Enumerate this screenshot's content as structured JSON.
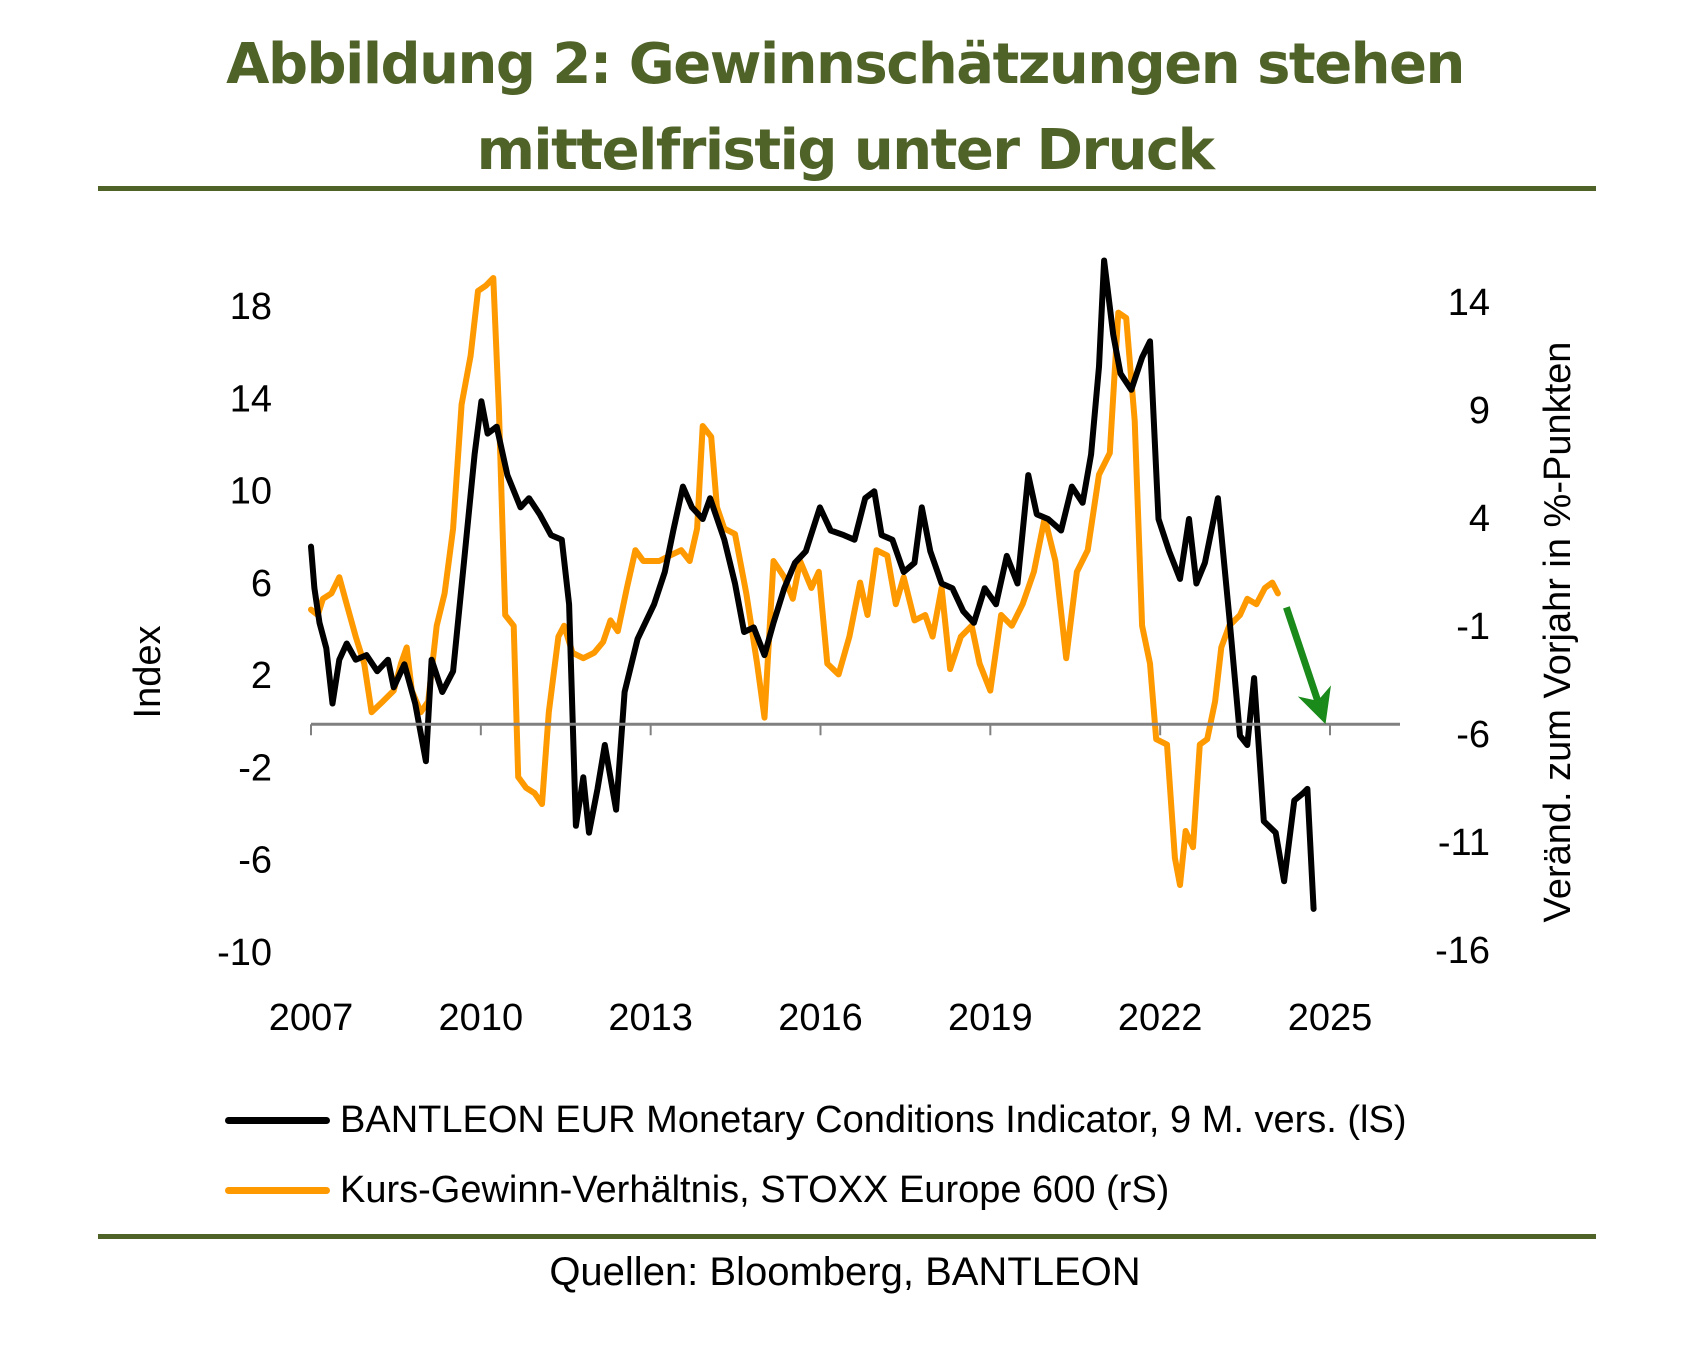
{
  "title": {
    "line1": "Abbildung 2: Gewinnschätzungen stehen",
    "line2": "mittelfristig unter Druck"
  },
  "source": "Quellen: Bloomberg, BANTLEON",
  "colors": {
    "title": "#4f6228",
    "series_black": "#000000",
    "series_orange": "#ff9900",
    "arrow": "#1a8a1a",
    "axis": "#808080"
  },
  "chart_data": {
    "type": "line",
    "title": "Abbildung 2: Gewinnschätzungen stehen mittelfristig unter Druck",
    "xlabel": "",
    "ylabel": "Index",
    "y2label": "Veränd. zum Vorjahr in %-Punkten",
    "xlim": [
      2007,
      2025
    ],
    "ylim": [
      -10,
      18
    ],
    "y2lim": [
      -16,
      14
    ],
    "x_ticks": [
      2007,
      2010,
      2013,
      2016,
      2019,
      2022,
      2025
    ],
    "y_ticks": [
      18,
      14,
      10,
      6,
      2,
      -2,
      -6,
      -10
    ],
    "y2_ticks": [
      14,
      9,
      4,
      -1,
      -6,
      -11,
      -16
    ],
    "grid": false,
    "legend_position": "bottom",
    "annotations": [
      {
        "type": "arrow",
        "color": "green",
        "axis": "right",
        "from": [
          2024.23,
          0.0
        ],
        "to": [
          2024.85,
          -4.85
        ]
      }
    ],
    "series": [
      {
        "name": "BANTLEON EUR Monetary Conditions Indicator, 9 M. vers. (lS)",
        "axis": "left",
        "color": "#000000",
        "x": [
          2007.0,
          2007.06,
          2007.15,
          2007.27,
          2007.38,
          2007.5,
          2007.63,
          2007.79,
          2007.98,
          2008.17,
          2008.36,
          2008.46,
          2008.65,
          2008.84,
          2009.03,
          2009.13,
          2009.32,
          2009.51,
          2009.7,
          2009.89,
          2010.01,
          2010.12,
          2010.28,
          2010.47,
          2010.7,
          2010.85,
          2011.04,
          2011.24,
          2011.43,
          2011.56,
          2011.68,
          2011.81,
          2011.91,
          2012.06,
          2012.19,
          2012.39,
          2012.54,
          2012.77,
          2013.06,
          2013.25,
          2013.4,
          2013.57,
          2013.73,
          2013.92,
          2014.05,
          2014.3,
          2014.49,
          2014.65,
          2014.82,
          2015.01,
          2015.17,
          2015.36,
          2015.55,
          2015.74,
          2015.99,
          2016.18,
          2016.41,
          2016.6,
          2016.79,
          2016.95,
          2017.08,
          2017.27,
          2017.47,
          2017.66,
          2017.79,
          2017.94,
          2018.14,
          2018.33,
          2018.52,
          2018.71,
          2018.9,
          2019.1,
          2019.29,
          2019.48,
          2019.67,
          2019.82,
          2020.02,
          2020.25,
          2020.44,
          2020.63,
          2020.78,
          2020.92,
          2021.01,
          2021.17,
          2021.3,
          2021.49,
          2021.68,
          2021.82,
          2021.97,
          2022.16,
          2022.35,
          2022.51,
          2022.64,
          2022.79,
          2023.02,
          2023.22,
          2023.41,
          2023.54,
          2023.66,
          2023.83,
          2024.04,
          2024.19,
          2024.37,
          2024.52,
          2024.6,
          2024.71
        ],
        "values": [
          7.7,
          5.9,
          4.4,
          3.3,
          0.9,
          2.8,
          3.5,
          2.8,
          3.0,
          2.3,
          2.8,
          1.6,
          2.6,
          0.9,
          -1.6,
          2.8,
          1.4,
          2.3,
          7.0,
          11.7,
          14.0,
          12.6,
          12.9,
          10.8,
          9.4,
          9.8,
          9.1,
          8.2,
          8.0,
          5.2,
          -4.4,
          -2.3,
          -4.7,
          -2.8,
          -0.9,
          -3.7,
          1.4,
          3.7,
          5.2,
          6.6,
          8.4,
          10.3,
          9.4,
          8.9,
          9.8,
          8.0,
          6.1,
          4.0,
          4.2,
          3.0,
          4.4,
          5.9,
          7.0,
          7.5,
          9.4,
          8.4,
          8.2,
          8.0,
          9.8,
          10.1,
          8.2,
          8.0,
          6.6,
          7.0,
          9.4,
          7.5,
          6.1,
          5.9,
          4.9,
          4.4,
          5.9,
          5.2,
          7.3,
          6.1,
          10.8,
          9.1,
          8.9,
          8.4,
          10.3,
          9.6,
          11.7,
          15.5,
          20.1,
          16.9,
          15.2,
          14.5,
          15.9,
          16.6,
          8.9,
          7.5,
          6.3,
          8.9,
          6.1,
          7.0,
          9.8,
          4.7,
          -0.5,
          -0.9,
          2.0,
          -4.2,
          -4.7,
          -6.8,
          -3.3,
          -3.0,
          -2.8,
          -8.0
        ]
      },
      {
        "name": "Kurs-Gewinn-Verhältnis, STOXX Europe 600 (rS)",
        "axis": "right",
        "color": "#ff9900",
        "x": [
          2007.0,
          2007.12,
          2007.21,
          2007.36,
          2007.5,
          2007.63,
          2007.79,
          2007.94,
          2008.07,
          2008.27,
          2008.46,
          2008.59,
          2008.69,
          2008.78,
          2008.94,
          2009.07,
          2009.22,
          2009.36,
          2009.51,
          2009.66,
          2009.82,
          2009.95,
          2010.09,
          2010.22,
          2010.32,
          2010.43,
          2010.58,
          2010.66,
          2010.8,
          2010.95,
          2011.08,
          2011.2,
          2011.37,
          2011.47,
          2011.62,
          2011.81,
          2012.0,
          2012.16,
          2012.29,
          2012.42,
          2012.58,
          2012.73,
          2012.87,
          2013.15,
          2013.34,
          2013.54,
          2013.69,
          2013.82,
          2013.92,
          2014.07,
          2014.17,
          2014.3,
          2014.49,
          2014.69,
          2014.88,
          2015.01,
          2015.17,
          2015.36,
          2015.51,
          2015.64,
          2015.84,
          2015.97,
          2016.12,
          2016.32,
          2016.51,
          2016.7,
          2016.83,
          2016.99,
          2017.18,
          2017.33,
          2017.47,
          2017.66,
          2017.85,
          2017.98,
          2018.14,
          2018.29,
          2018.48,
          2018.67,
          2018.81,
          2019.0,
          2019.19,
          2019.38,
          2019.57,
          2019.77,
          2019.96,
          2020.15,
          2020.34,
          2020.53,
          2020.72,
          2020.92,
          2021.11,
          2021.26,
          2021.4,
          2021.55,
          2021.68,
          2021.82,
          2021.93,
          2022.12,
          2022.26,
          2022.35,
          2022.45,
          2022.58,
          2022.7,
          2022.83,
          2022.97,
          2023.08,
          2023.22,
          2023.41,
          2023.54,
          2023.7,
          2023.85,
          2023.98,
          2024.08
        ],
        "values": [
          -0.1,
          -0.35,
          0.4,
          0.65,
          1.4,
          0.15,
          -1.35,
          -2.6,
          -4.85,
          -4.35,
          -3.85,
          -2.6,
          -1.85,
          -3.85,
          -4.85,
          -4.35,
          -0.85,
          0.65,
          3.65,
          9.4,
          11.65,
          14.65,
          14.9,
          15.25,
          9.15,
          -0.35,
          -0.85,
          -7.85,
          -8.35,
          -8.6,
          -9.1,
          -4.85,
          -1.35,
          -0.85,
          -2.1,
          -2.35,
          -2.1,
          -1.6,
          -0.6,
          -1.1,
          0.9,
          2.65,
          2.15,
          2.15,
          2.4,
          2.65,
          2.15,
          3.65,
          8.4,
          7.9,
          4.65,
          3.65,
          3.4,
          0.65,
          -2.6,
          -5.1,
          2.15,
          1.4,
          0.4,
          2.15,
          0.9,
          1.65,
          -2.6,
          -3.1,
          -1.35,
          1.15,
          -0.35,
          2.65,
          2.4,
          0.15,
          1.4,
          -0.6,
          -0.35,
          -1.35,
          0.9,
          -2.85,
          -1.35,
          -0.85,
          -2.6,
          -3.85,
          -0.35,
          -0.85,
          0.15,
          1.65,
          4.15,
          2.15,
          -2.35,
          1.65,
          2.65,
          6.15,
          7.15,
          13.65,
          13.4,
          8.65,
          -0.85,
          -2.6,
          -6.1,
          -6.35,
          -11.6,
          -12.85,
          -10.35,
          -11.1,
          -6.35,
          -6.1,
          -4.35,
          -1.85,
          -0.85,
          -0.35,
          0.4,
          0.15,
          0.9,
          1.15,
          0.65
        ]
      }
    ]
  }
}
